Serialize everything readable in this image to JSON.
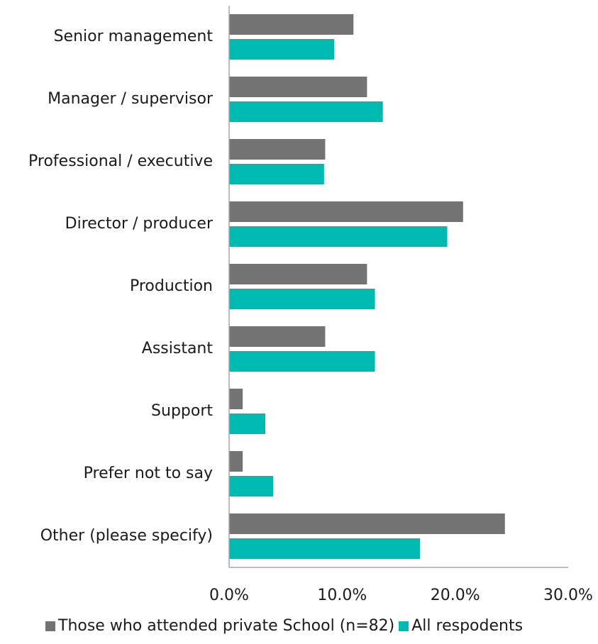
{
  "chart_data": {
    "type": "bar",
    "orientation": "horizontal",
    "categories": [
      "Senior management",
      "Manager / supervisor",
      "Professional / executive",
      "Director / producer",
      "Production",
      "Assistant",
      "Support",
      "Prefer not to say",
      "Other (please specify)"
    ],
    "series": [
      {
        "name": "Those who attended private School (n=82)",
        "color": "#737373",
        "values": [
          11.0,
          12.2,
          8.5,
          20.7,
          12.2,
          8.5,
          1.2,
          1.2,
          24.4
        ]
      },
      {
        "name": "All respodents",
        "color": "#00b9b0",
        "values": [
          9.3,
          13.6,
          8.4,
          19.3,
          12.9,
          12.9,
          3.2,
          3.9,
          16.9
        ]
      }
    ],
    "xlim": [
      0,
      30
    ],
    "xticks": [
      "0.0%",
      "10.0%",
      "20.0%",
      "30.0%"
    ],
    "title": "",
    "xlabel": "",
    "ylabel": "",
    "grid": false,
    "legend_position": "bottom"
  }
}
